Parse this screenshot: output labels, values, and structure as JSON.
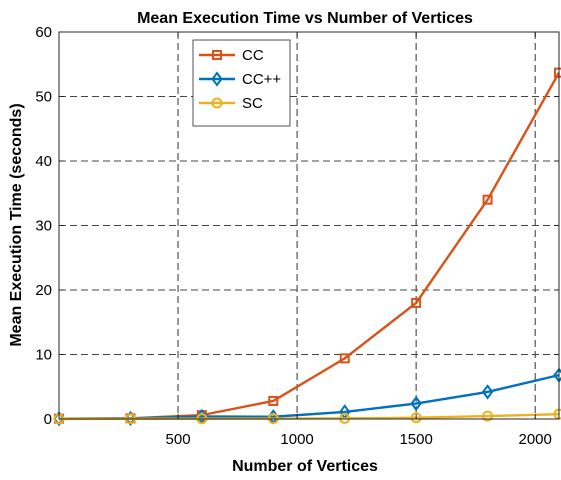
{
  "chart_data": {
    "type": "line",
    "title": "Mean Execution Time vs Number of Vertices",
    "xlabel": "Number of Vertices",
    "ylabel": "Mean Execution Time (seconds)",
    "xlim": [
      0,
      2100
    ],
    "ylim": [
      0,
      60
    ],
    "x_ticks": [
      500,
      1000,
      1500,
      2000
    ],
    "y_ticks": [
      0,
      10,
      20,
      30,
      40,
      50,
      60
    ],
    "grid": true,
    "legend_position": "top-left",
    "x": [
      0,
      300,
      600,
      900,
      1200,
      1500,
      1800,
      2100
    ],
    "series": [
      {
        "name": "CC",
        "color": "#D95319",
        "marker": "square",
        "values": [
          0.05,
          0.1,
          0.6,
          2.8,
          9.4,
          18.0,
          34.0,
          53.7
        ]
      },
      {
        "name": "CC++",
        "color": "#0072BD",
        "marker": "diamond",
        "values": [
          0.05,
          0.08,
          0.4,
          0.35,
          1.1,
          2.4,
          4.2,
          6.8
        ]
      },
      {
        "name": "SC",
        "color": "#EDB120",
        "marker": "circle",
        "values": [
          0.02,
          0.03,
          0.05,
          0.07,
          0.1,
          0.2,
          0.45,
          0.75
        ]
      }
    ]
  }
}
